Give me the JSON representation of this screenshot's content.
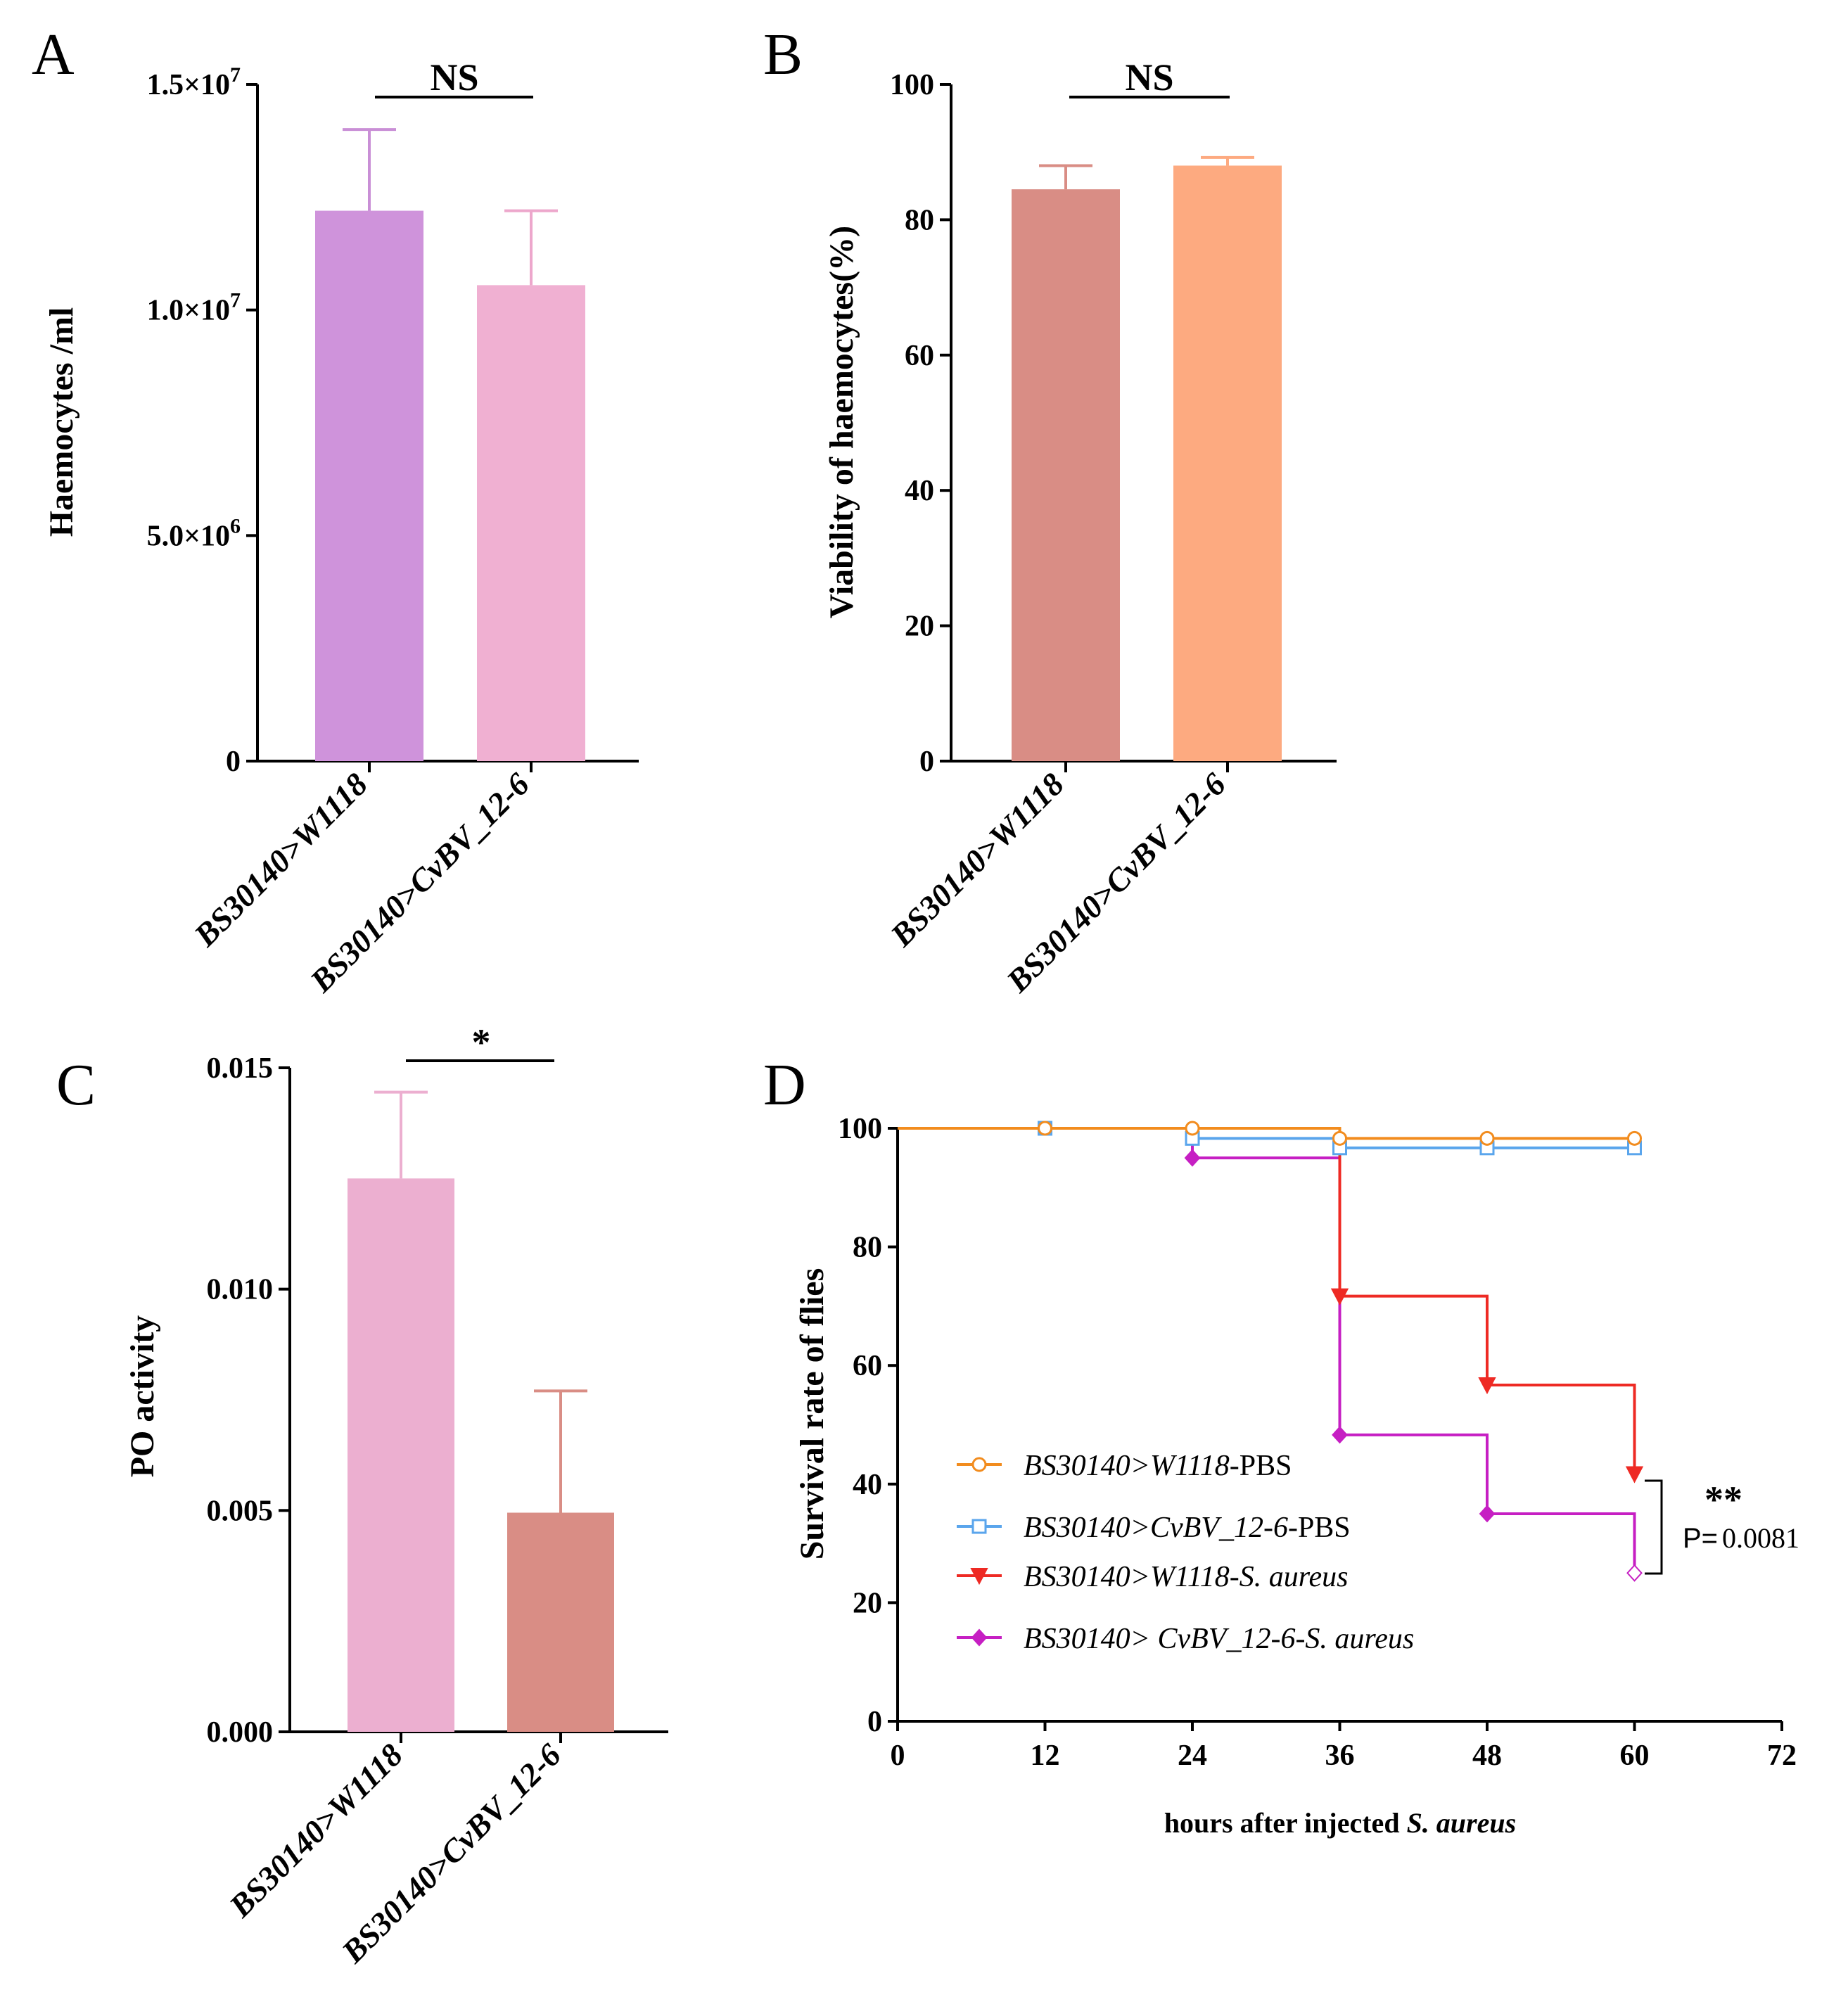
{
  "chart_data": [
    {
      "panel": "A",
      "type": "bar",
      "ylabel": "Haemocytes /ml",
      "ylim": [
        0,
        15000000
      ],
      "yticks": [
        0,
        5000000,
        10000000,
        15000000
      ],
      "ytick_labels": [
        {
          "value": 0,
          "base": "0",
          "exp": ""
        },
        {
          "value": 5000000,
          "base": "5.0×10",
          "exp": "6"
        },
        {
          "value": 10000000,
          "base": "1.0×10",
          "exp": "7"
        },
        {
          "value": 15000000,
          "base": "1.5×10",
          "exp": "7"
        }
      ],
      "categories": [
        "BS30140>W1118",
        "BS30140>CvBV_12-6"
      ],
      "values": [
        12200000,
        10550000
      ],
      "errors": [
        1800000,
        1650000
      ],
      "colors": [
        "#cf93db",
        "#f0b0d2"
      ],
      "error_colors": [
        "#c98fd6",
        "#eda7cc"
      ],
      "significance": "NS"
    },
    {
      "panel": "B",
      "type": "bar",
      "ylabel": "Viability of haemocytes(%)",
      "ylim": [
        0,
        100
      ],
      "yticks": [
        0,
        20,
        40,
        60,
        80,
        100
      ],
      "categories": [
        "BS30140>W1118",
        "BS30140>CvBV_12-6"
      ],
      "values": [
        84.5,
        88
      ],
      "errors": [
        3.5,
        1.2
      ],
      "colors": [
        "#d98d85",
        "#fdaa80"
      ],
      "error_colors": [
        "#d98d85",
        "#fdaa80"
      ],
      "significance": "NS"
    },
    {
      "panel": "C",
      "type": "bar",
      "ylabel": "PO activity",
      "ylim": [
        0,
        0.015
      ],
      "yticks": [
        0,
        0.005,
        0.01,
        0.015
      ],
      "ytick_labels": [
        "0.000",
        "0.005",
        "0.010",
        "0.015"
      ],
      "categories": [
        "BS30140>W1118",
        "BS30140>CvBV_12-6"
      ],
      "values": [
        0.0125,
        0.00495
      ],
      "errors": [
        0.00195,
        0.00275
      ],
      "colors": [
        "#ecafd0",
        "#d98d85"
      ],
      "error_colors": [
        "#ecafd0",
        "#d98d85"
      ],
      "significance": "*"
    },
    {
      "panel": "D",
      "type": "line",
      "style": "step",
      "ylabel": "Survival rate of flies",
      "xlabel": "hours after injected ",
      "xlabel_italic": "S. aureus",
      "xlim": [
        0,
        72
      ],
      "ylim": [
        0,
        100
      ],
      "xticks": [
        0,
        12,
        24,
        36,
        48,
        60,
        72
      ],
      "yticks": [
        0,
        20,
        40,
        60,
        80,
        100
      ],
      "series": [
        {
          "name_italic": "BS30140>W1118",
          "name_plain": "-PBS",
          "color": "#f28c1e",
          "marker": "circle",
          "x": [
            0,
            12,
            24,
            36,
            48,
            60
          ],
          "y": [
            100,
            100,
            100,
            98.3,
            98.3,
            98.3
          ],
          "marker_x": [
            12,
            24,
            36,
            48,
            60
          ]
        },
        {
          "name_italic": "BS30140>CvBV_12-6",
          "name_plain": "-PBS",
          "color": "#5aa5ec",
          "marker": "square",
          "x": [
            0,
            12,
            24,
            36,
            48,
            60
          ],
          "y": [
            100,
            100,
            98.3,
            96.7,
            96.7,
            96.7
          ],
          "marker_x": [
            12,
            24,
            36,
            48,
            60
          ]
        },
        {
          "name_italic": "BS30140>W1118-S. aureus",
          "name_plain": "",
          "color": "#ee2a24",
          "marker": "triangle-down",
          "x": [
            0,
            12,
            24,
            36,
            48,
            60
          ],
          "y": [
            100,
            100,
            100,
            71.7,
            56.7,
            41.7
          ],
          "marker_x": [
            36,
            48,
            60
          ]
        },
        {
          "name_italic": "BS30140> CvBV_12-6-S. aureus",
          "name_plain": "",
          "color": "#c61fc3",
          "marker": "diamond",
          "x": [
            0,
            12,
            24,
            36,
            48,
            60
          ],
          "y": [
            100,
            100,
            95,
            48.3,
            35,
            25
          ],
          "marker_x": [
            24,
            36,
            48,
            60
          ]
        }
      ],
      "significance": "**",
      "p_label": "P=",
      "p_value": "0.0081"
    }
  ]
}
